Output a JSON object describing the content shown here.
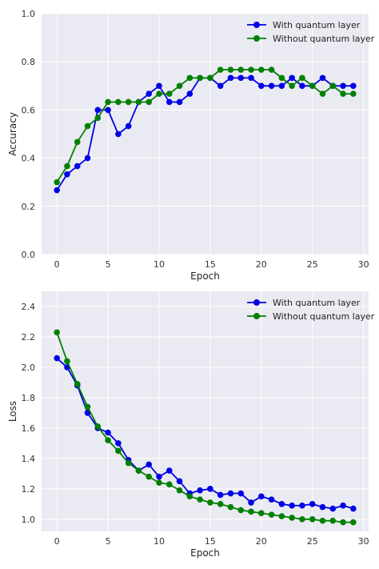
{
  "chart_data": [
    {
      "type": "line",
      "title": "",
      "xlabel": "Epoch",
      "ylabel": "Accuracy",
      "xlim": [
        -1.5,
        30.5
      ],
      "ylim": [
        0.0,
        1.0
      ],
      "xticks": [
        0,
        5,
        10,
        15,
        20,
        25,
        30
      ],
      "yticks": [
        0.0,
        0.2,
        0.4,
        0.6,
        0.8,
        1.0
      ],
      "ytick_labels": [
        "0.0",
        "0.2",
        "0.4",
        "0.6",
        "0.8",
        "1.0"
      ],
      "grid": true,
      "legend_position": "top-right",
      "x": [
        0,
        1,
        2,
        3,
        4,
        5,
        6,
        7,
        8,
        9,
        10,
        11,
        12,
        13,
        14,
        15,
        16,
        17,
        18,
        19,
        20,
        21,
        22,
        23,
        24,
        25,
        26,
        27,
        28,
        29
      ],
      "series": [
        {
          "name": "With quantum layer",
          "color": "#0000e6",
          "values": [
            0.267,
            0.333,
            0.367,
            0.4,
            0.6,
            0.6,
            0.5,
            0.533,
            0.633,
            0.667,
            0.7,
            0.633,
            0.633,
            0.667,
            0.733,
            0.733,
            0.7,
            0.733,
            0.733,
            0.733,
            0.7,
            0.7,
            0.7,
            0.733,
            0.7,
            0.7,
            0.733,
            0.7,
            0.7,
            0.7
          ]
        },
        {
          "name": "Without quantum layer",
          "color": "#008000",
          "values": [
            0.3,
            0.367,
            0.467,
            0.533,
            0.567,
            0.633,
            0.633,
            0.633,
            0.633,
            0.633,
            0.667,
            0.667,
            0.7,
            0.733,
            0.733,
            0.733,
            0.767,
            0.767,
            0.767,
            0.767,
            0.767,
            0.767,
            0.733,
            0.7,
            0.733,
            0.7,
            0.667,
            0.7,
            0.667,
            0.667
          ]
        }
      ]
    },
    {
      "type": "line",
      "title": "",
      "xlabel": "Epoch",
      "ylabel": "Loss",
      "xlim": [
        -1.5,
        30.5
      ],
      "ylim": [
        0.92,
        2.5
      ],
      "xticks": [
        0,
        5,
        10,
        15,
        20,
        25,
        30
      ],
      "yticks": [
        1.0,
        1.2,
        1.4,
        1.6,
        1.8,
        2.0,
        2.2,
        2.4
      ],
      "ytick_labels": [
        "1.0",
        "1.2",
        "1.4",
        "1.6",
        "1.8",
        "2.0",
        "2.2",
        "2.4"
      ],
      "grid": true,
      "legend_position": "top-right",
      "x": [
        0,
        1,
        2,
        3,
        4,
        5,
        6,
        7,
        8,
        9,
        10,
        11,
        12,
        13,
        14,
        15,
        16,
        17,
        18,
        19,
        20,
        21,
        22,
        23,
        24,
        25,
        26,
        27,
        28,
        29
      ],
      "series": [
        {
          "name": "With quantum layer",
          "color": "#0000e6",
          "values": [
            2.06,
            2.0,
            1.88,
            1.7,
            1.6,
            1.57,
            1.5,
            1.39,
            1.32,
            1.36,
            1.28,
            1.32,
            1.25,
            1.17,
            1.19,
            1.2,
            1.16,
            1.17,
            1.17,
            1.11,
            1.15,
            1.13,
            1.1,
            1.09,
            1.09,
            1.1,
            1.08,
            1.07,
            1.09,
            1.07
          ]
        },
        {
          "name": "Without quantum layer",
          "color": "#008000",
          "values": [
            2.23,
            2.04,
            1.89,
            1.74,
            1.61,
            1.52,
            1.45,
            1.37,
            1.32,
            1.28,
            1.24,
            1.23,
            1.19,
            1.15,
            1.13,
            1.11,
            1.1,
            1.08,
            1.06,
            1.05,
            1.04,
            1.03,
            1.02,
            1.01,
            1.0,
            1.0,
            0.99,
            0.99,
            0.98,
            0.98
          ]
        }
      ]
    }
  ]
}
